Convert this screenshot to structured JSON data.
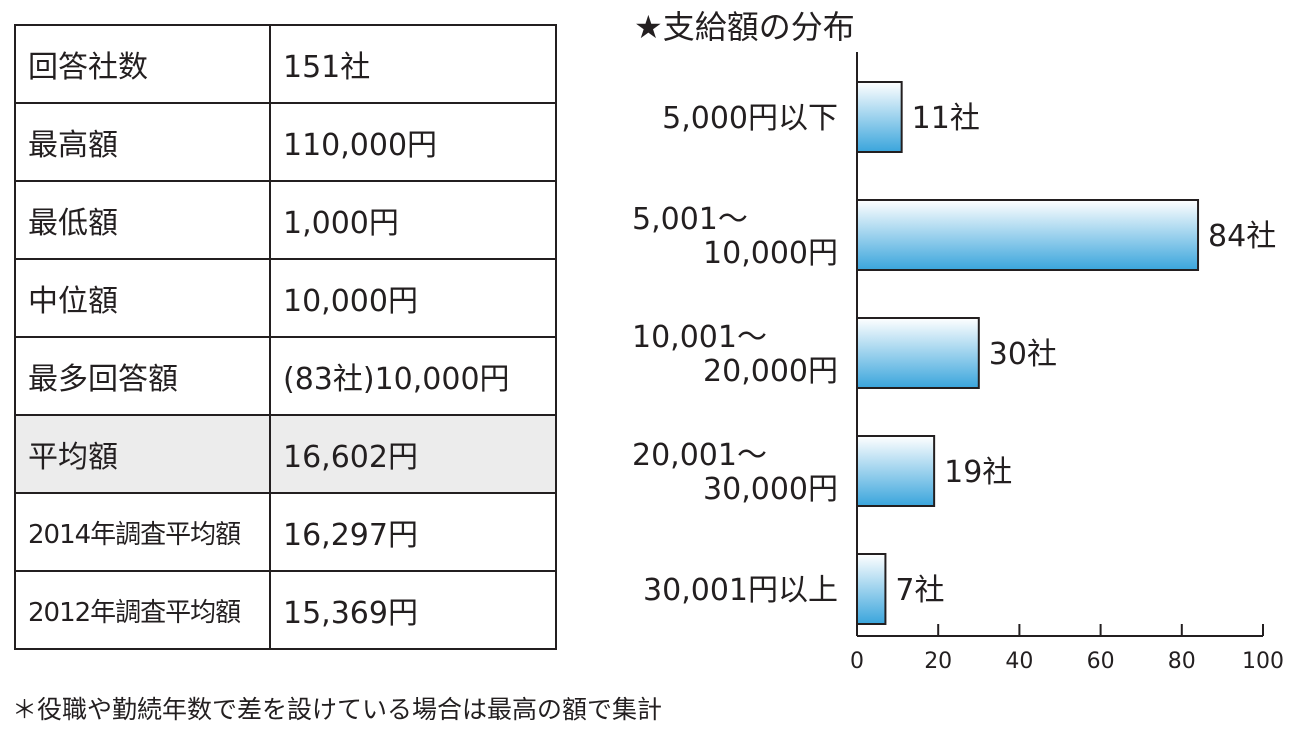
{
  "table": {
    "rows": [
      {
        "label": "回答社数",
        "value": "151社"
      },
      {
        "label": "最高額",
        "value": "110,000円"
      },
      {
        "label": "最低額",
        "value": "1,000円"
      },
      {
        "label": "中位額",
        "value": "10,000円"
      },
      {
        "label": "最多回答額",
        "value": "(83社)10,000円"
      },
      {
        "label": "平均額",
        "value": "16,602円",
        "highlighted": true
      },
      {
        "label": "2014年調査平均額",
        "value": "16,297円"
      },
      {
        "label": "2012年調査平均額",
        "value": "15,369円"
      }
    ]
  },
  "chart_data": {
    "type": "bar",
    "orientation": "horizontal",
    "title": "★支給額の分布",
    "categories": [
      [
        "5,000円以下"
      ],
      [
        "5,001～",
        "10,000円"
      ],
      [
        "10,001～",
        "20,000円"
      ],
      [
        "20,001～",
        "30,000円"
      ],
      [
        "30,001円以上"
      ]
    ],
    "values": [
      11,
      84,
      30,
      19,
      7
    ],
    "data_labels": [
      "11社",
      "84社",
      "30社",
      "19社",
      "7社"
    ],
    "xlim": [
      0,
      100
    ],
    "x_ticks": [
      0,
      20,
      40,
      60,
      80,
      100
    ],
    "grid": false,
    "bar_fill": {
      "light": "#ffffff",
      "dark": "#3aa5dc"
    },
    "stroke": "#231f20"
  },
  "footnote": "＊役職や勤続年数で差を設けている場合は最高の額で集計"
}
